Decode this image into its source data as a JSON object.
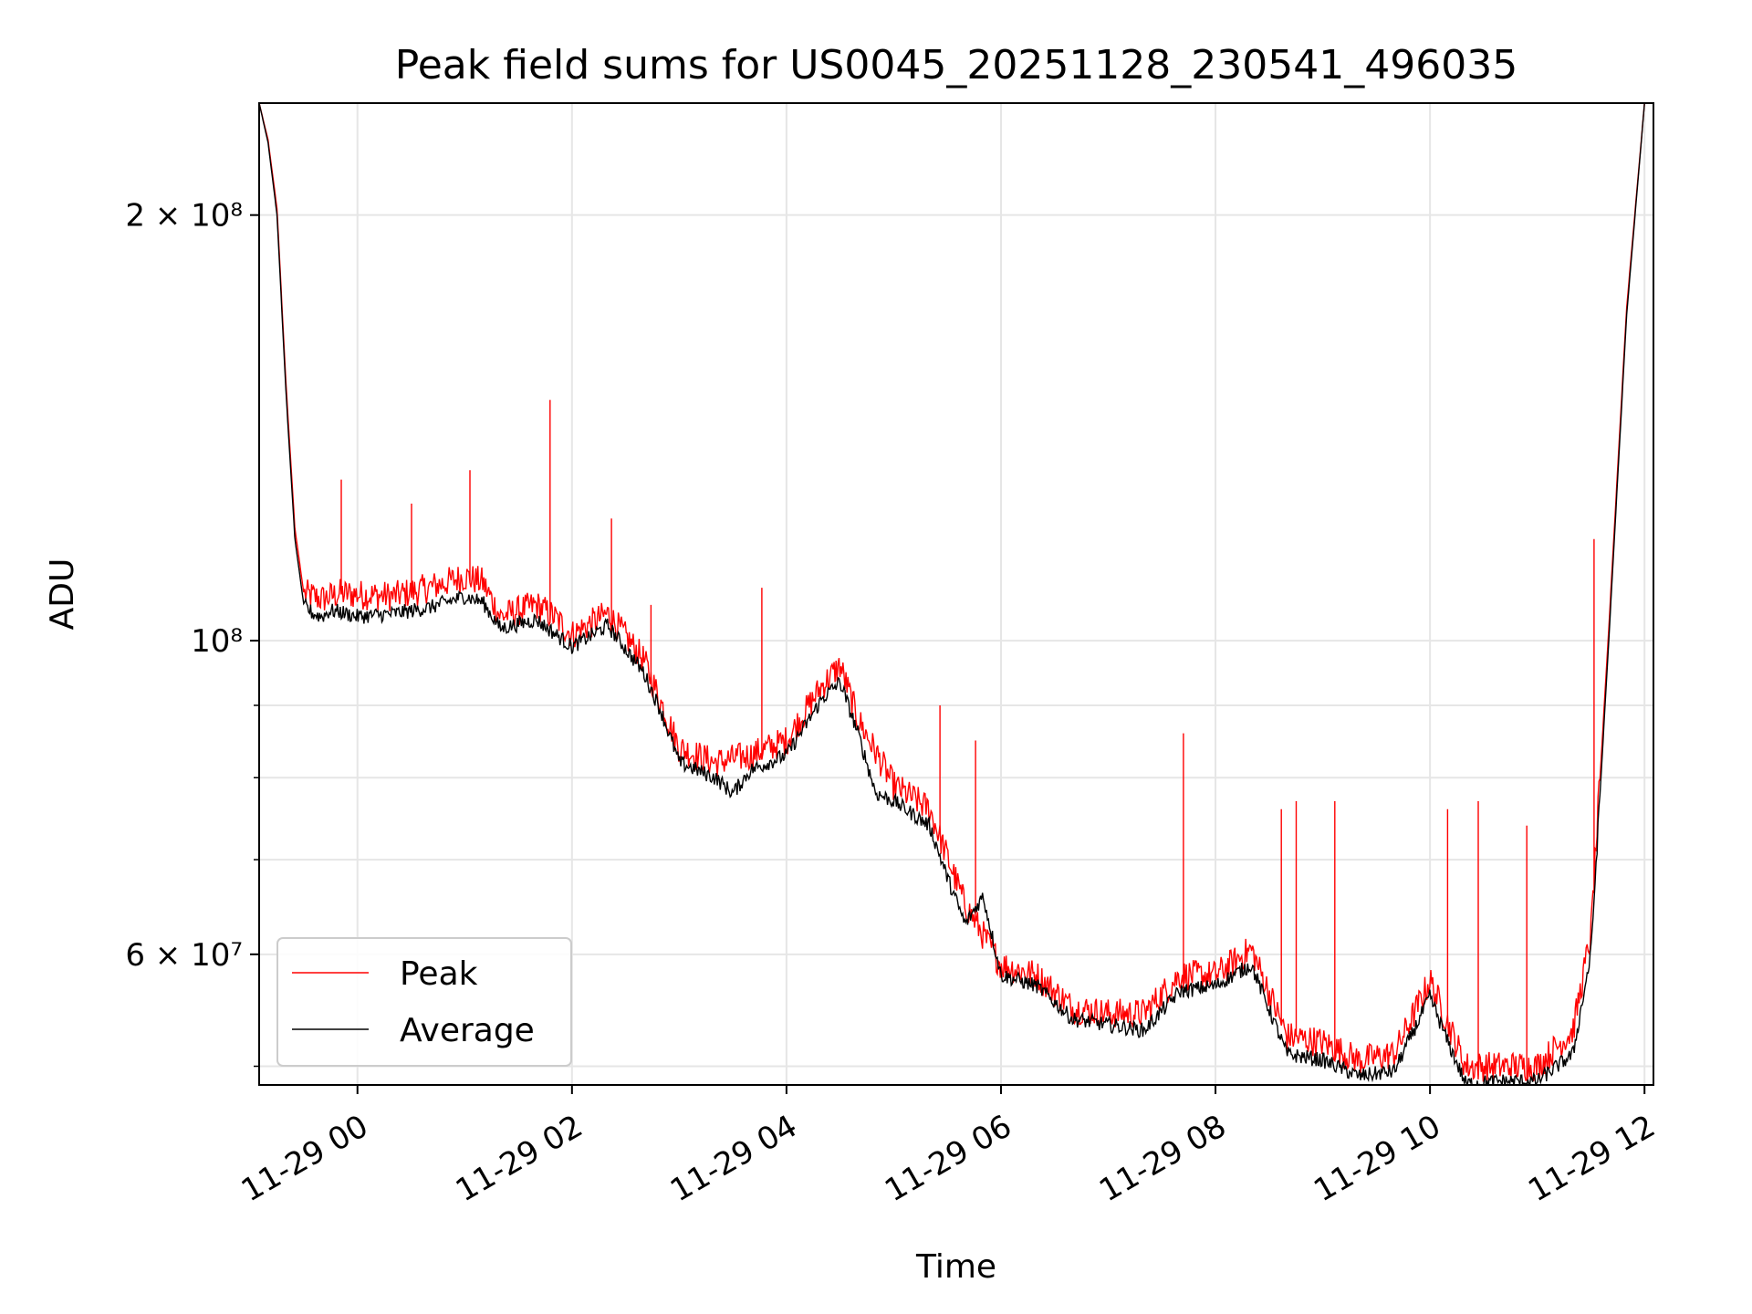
{
  "chart_data": {
    "type": "line",
    "title": "Peak field sums for US0045_20251128_230541_496035",
    "xlabel": "Time",
    "ylabel": "ADU",
    "x_ticks": [
      "11-29 00",
      "11-29 02",
      "11-29 04",
      "11-29 06",
      "11-29 08",
      "11-29 10",
      "11-29 12"
    ],
    "x_range": [
      "11-28 23:05",
      "11-29 12:05"
    ],
    "y_scale": "log",
    "ylim": [
      48500000,
      240000000
    ],
    "y_tick_labels": [
      {
        "value": 200000000,
        "label": "2 × 10⁸"
      },
      {
        "value": 100000000,
        "label": "10⁸"
      },
      {
        "value": 60000000,
        "label": "6 × 10⁷"
      }
    ],
    "y_minor_ticks": [
      50000000,
      70000000,
      80000000,
      90000000
    ],
    "grid": true,
    "legend_position": "lower-left",
    "colors": {
      "Peak": "#ff0000",
      "Average": "#000000",
      "grid": "#e6e6e6"
    },
    "series": [
      {
        "name": "Average",
        "x": [
          "11-28 23:05",
          "11-28 23:10",
          "11-28 23:15",
          "11-28 23:20",
          "11-28 23:25",
          "11-28 23:30",
          "11-28 23:35",
          "11-28 23:40",
          "11-28 23:45",
          "11-28 23:50",
          "11-28 24:00",
          "11-29 00:20",
          "11-29 00:40",
          "11-29 01:00",
          "11-29 01:10",
          "11-29 01:20",
          "11-29 01:40",
          "11-29 02:00",
          "11-29 02:20",
          "11-29 02:40",
          "11-29 02:50",
          "11-29 03:00",
          "11-29 03:20",
          "11-29 03:30",
          "11-29 03:40",
          "11-29 04:00",
          "11-29 04:20",
          "11-29 04:30",
          "11-29 04:40",
          "11-29 04:50",
          "11-29 05:00",
          "11-29 05:20",
          "11-29 05:30",
          "11-29 05:40",
          "11-29 05:50",
          "11-29 06:00",
          "11-29 06:20",
          "11-29 06:40",
          "11-29 07:00",
          "11-29 07:20",
          "11-29 07:40",
          "11-29 08:00",
          "11-29 08:20",
          "11-29 08:40",
          "11-29 09:00",
          "11-29 09:20",
          "11-29 09:40",
          "11-29 10:00",
          "11-29 10:10",
          "11-29 10:20",
          "11-29 10:40",
          "11-29 11:00",
          "11-29 11:20",
          "11-29 11:30",
          "11-29 11:40",
          "11-29 11:50",
          "11-29 12:00"
        ],
        "values": [
          240000000,
          225000000,
          200000000,
          150000000,
          118000000,
          106000000,
          104500000,
          104000000,
          105000000,
          104800000,
          104000000,
          104500000,
          105500000,
          107500000,
          106500000,
          102000000,
          103500000,
          99000000,
          102500000,
          95000000,
          89000000,
          82000000,
          80000000,
          78000000,
          81000000,
          83000000,
          91000000,
          93500000,
          86000000,
          78000000,
          77000000,
          74000000,
          68000000,
          63000000,
          66000000,
          58000000,
          57000000,
          54000000,
          53500000,
          53000000,
          56500000,
          57000000,
          59000000,
          51000000,
          50500000,
          49200000,
          49600000,
          56000000,
          52000000,
          48600000,
          48800000,
          48800000,
          51000000,
          60000000,
          100000000,
          170000000,
          240000000
        ]
      },
      {
        "name": "Peak",
        "x": [
          "11-28 23:05",
          "11-28 23:10",
          "11-28 23:15",
          "11-28 23:20",
          "11-28 23:25",
          "11-28 23:30",
          "11-28 23:40",
          "11-28 23:50",
          "11-29 00:20",
          "11-29 00:40",
          "11-29 01:00",
          "11-29 01:10",
          "11-29 01:20",
          "11-29 01:40",
          "11-29 01:50",
          "11-29 02:00",
          "11-29 02:20",
          "11-29 02:40",
          "11-29 03:00",
          "11-29 03:20",
          "11-29 03:40",
          "11-29 04:00",
          "11-29 04:20",
          "11-29 04:30",
          "11-29 04:40",
          "11-29 05:00",
          "11-29 05:20",
          "11-29 05:40",
          "11-29 06:00",
          "11-29 06:20",
          "11-29 06:40",
          "11-29 07:00",
          "11-29 07:20",
          "11-29 07:40",
          "11-29 08:00",
          "11-29 08:20",
          "11-29 08:40",
          "11-29 09:00",
          "11-29 09:20",
          "11-29 09:40",
          "11-29 10:00",
          "11-29 10:20",
          "11-29 10:40",
          "11-29 11:00",
          "11-29 11:20",
          "11-29 11:30",
          "11-29 11:40",
          "11-29 11:50",
          "11-29 12:00"
        ],
        "values": [
          240000000,
          226000000,
          202000000,
          152000000,
          120000000,
          108000000,
          107000000,
          108000000,
          107500000,
          109000000,
          111000000,
          110000000,
          104000000,
          106000000,
          104000000,
          101000000,
          104500000,
          97000000,
          84000000,
          82000000,
          83000000,
          85000000,
          93000000,
          96000000,
          88000000,
          79000000,
          76000000,
          65000000,
          59000000,
          58000000,
          55000000,
          54500000,
          54500000,
          58000000,
          58000000,
          60500000,
          52500000,
          52000000,
          50500000,
          51000000,
          57500000,
          50000000,
          50000000,
          50000000,
          53000000,
          62000000,
          102000000,
          172000000,
          240000000
        ]
      }
    ],
    "peak_spikes": [
      {
        "x": "11-28 23:51",
        "value": 130000000
      },
      {
        "x": "11-29 00:30",
        "value": 125000000
      },
      {
        "x": "11-29 01:03",
        "value": 132000000
      },
      {
        "x": "11-29 01:48",
        "value": 148000000
      },
      {
        "x": "11-29 02:22",
        "value": 122000000
      },
      {
        "x": "11-29 02:44",
        "value": 106000000
      },
      {
        "x": "11-29 03:46",
        "value": 109000000
      },
      {
        "x": "11-29 05:26",
        "value": 90000000
      },
      {
        "x": "11-29 05:46",
        "value": 85000000
      },
      {
        "x": "11-29 07:42",
        "value": 86000000
      },
      {
        "x": "11-29 08:37",
        "value": 76000000
      },
      {
        "x": "11-29 08:45",
        "value": 77000000
      },
      {
        "x": "11-29 09:07",
        "value": 77000000
      },
      {
        "x": "11-29 10:10",
        "value": 76000000
      },
      {
        "x": "11-29 10:27",
        "value": 77000000
      },
      {
        "x": "11-29 10:54",
        "value": 74000000
      },
      {
        "x": "11-29 11:32",
        "value": 118000000
      }
    ]
  }
}
